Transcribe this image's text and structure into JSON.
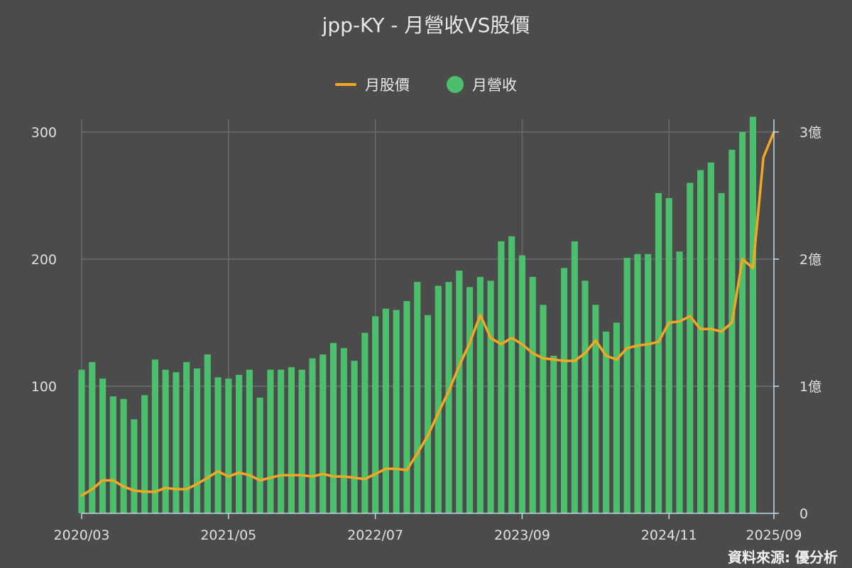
{
  "title": "jpp-KY - 月營收VS股價",
  "source": "資料來源: 優分析",
  "colors": {
    "price": "#f5a623",
    "revenue": "#4bbf6b",
    "grid": "#6a6a6a",
    "axis": "#bfd8ea"
  },
  "legend": {
    "price": {
      "label": "月股價",
      "icon": "line-icon"
    },
    "revenue": {
      "label": "月營收",
      "icon": "circle-icon"
    }
  },
  "chart_data": {
    "type": "bar",
    "x_labels": [
      "2020/03",
      "2021/05",
      "2022/07",
      "2023/09",
      "2024/11",
      "2025/09"
    ],
    "x_range": [
      "2020/03",
      "2025/09"
    ],
    "y_left": {
      "ticks": [
        "100",
        "200",
        "300"
      ],
      "range": [
        0,
        310
      ]
    },
    "y_right": {
      "ticks": [
        "0",
        "1億",
        "2億",
        "3億"
      ],
      "range": [
        0,
        3.1
      ],
      "unit": "億"
    },
    "grid": true,
    "legend_position": "top-center",
    "series": [
      {
        "name": "月營收",
        "type": "bar",
        "axis": "right",
        "start": "2020/03",
        "values": [
          1.13,
          1.19,
          1.06,
          0.92,
          0.9,
          0.74,
          0.93,
          1.21,
          1.13,
          1.11,
          1.19,
          1.14,
          1.25,
          1.07,
          1.06,
          1.09,
          1.13,
          0.91,
          1.13,
          1.13,
          1.15,
          1.13,
          1.22,
          1.25,
          1.34,
          1.3,
          1.2,
          1.42,
          1.55,
          1.61,
          1.6,
          1.67,
          1.82,
          1.56,
          1.79,
          1.82,
          1.91,
          1.78,
          1.86,
          1.83,
          2.14,
          2.18,
          2.03,
          1.86,
          1.64,
          1.24,
          1.93,
          2.14,
          1.83,
          1.64,
          1.43,
          1.5,
          2.01,
          2.04,
          2.04,
          2.52,
          2.48,
          2.06,
          2.6,
          2.7,
          2.76,
          2.52,
          2.86,
          3.0,
          3.12
        ]
      },
      {
        "name": "月股價",
        "type": "line",
        "axis": "left",
        "start": "2020/03",
        "values": [
          14,
          19,
          26,
          26,
          21,
          18,
          17,
          17,
          20,
          19,
          19,
          23,
          28,
          33,
          29,
          32,
          30,
          26,
          28,
          30,
          30,
          30,
          29,
          31,
          29,
          29,
          28,
          27,
          31,
          35,
          35,
          34,
          47,
          61,
          79,
          96,
          116,
          134,
          156,
          138,
          133,
          138,
          133,
          126,
          122,
          121,
          120,
          120,
          126,
          136,
          124,
          121,
          130,
          132,
          133,
          135,
          150,
          151,
          155,
          145,
          145,
          143,
          150,
          200,
          193,
          280,
          300
        ]
      }
    ]
  }
}
